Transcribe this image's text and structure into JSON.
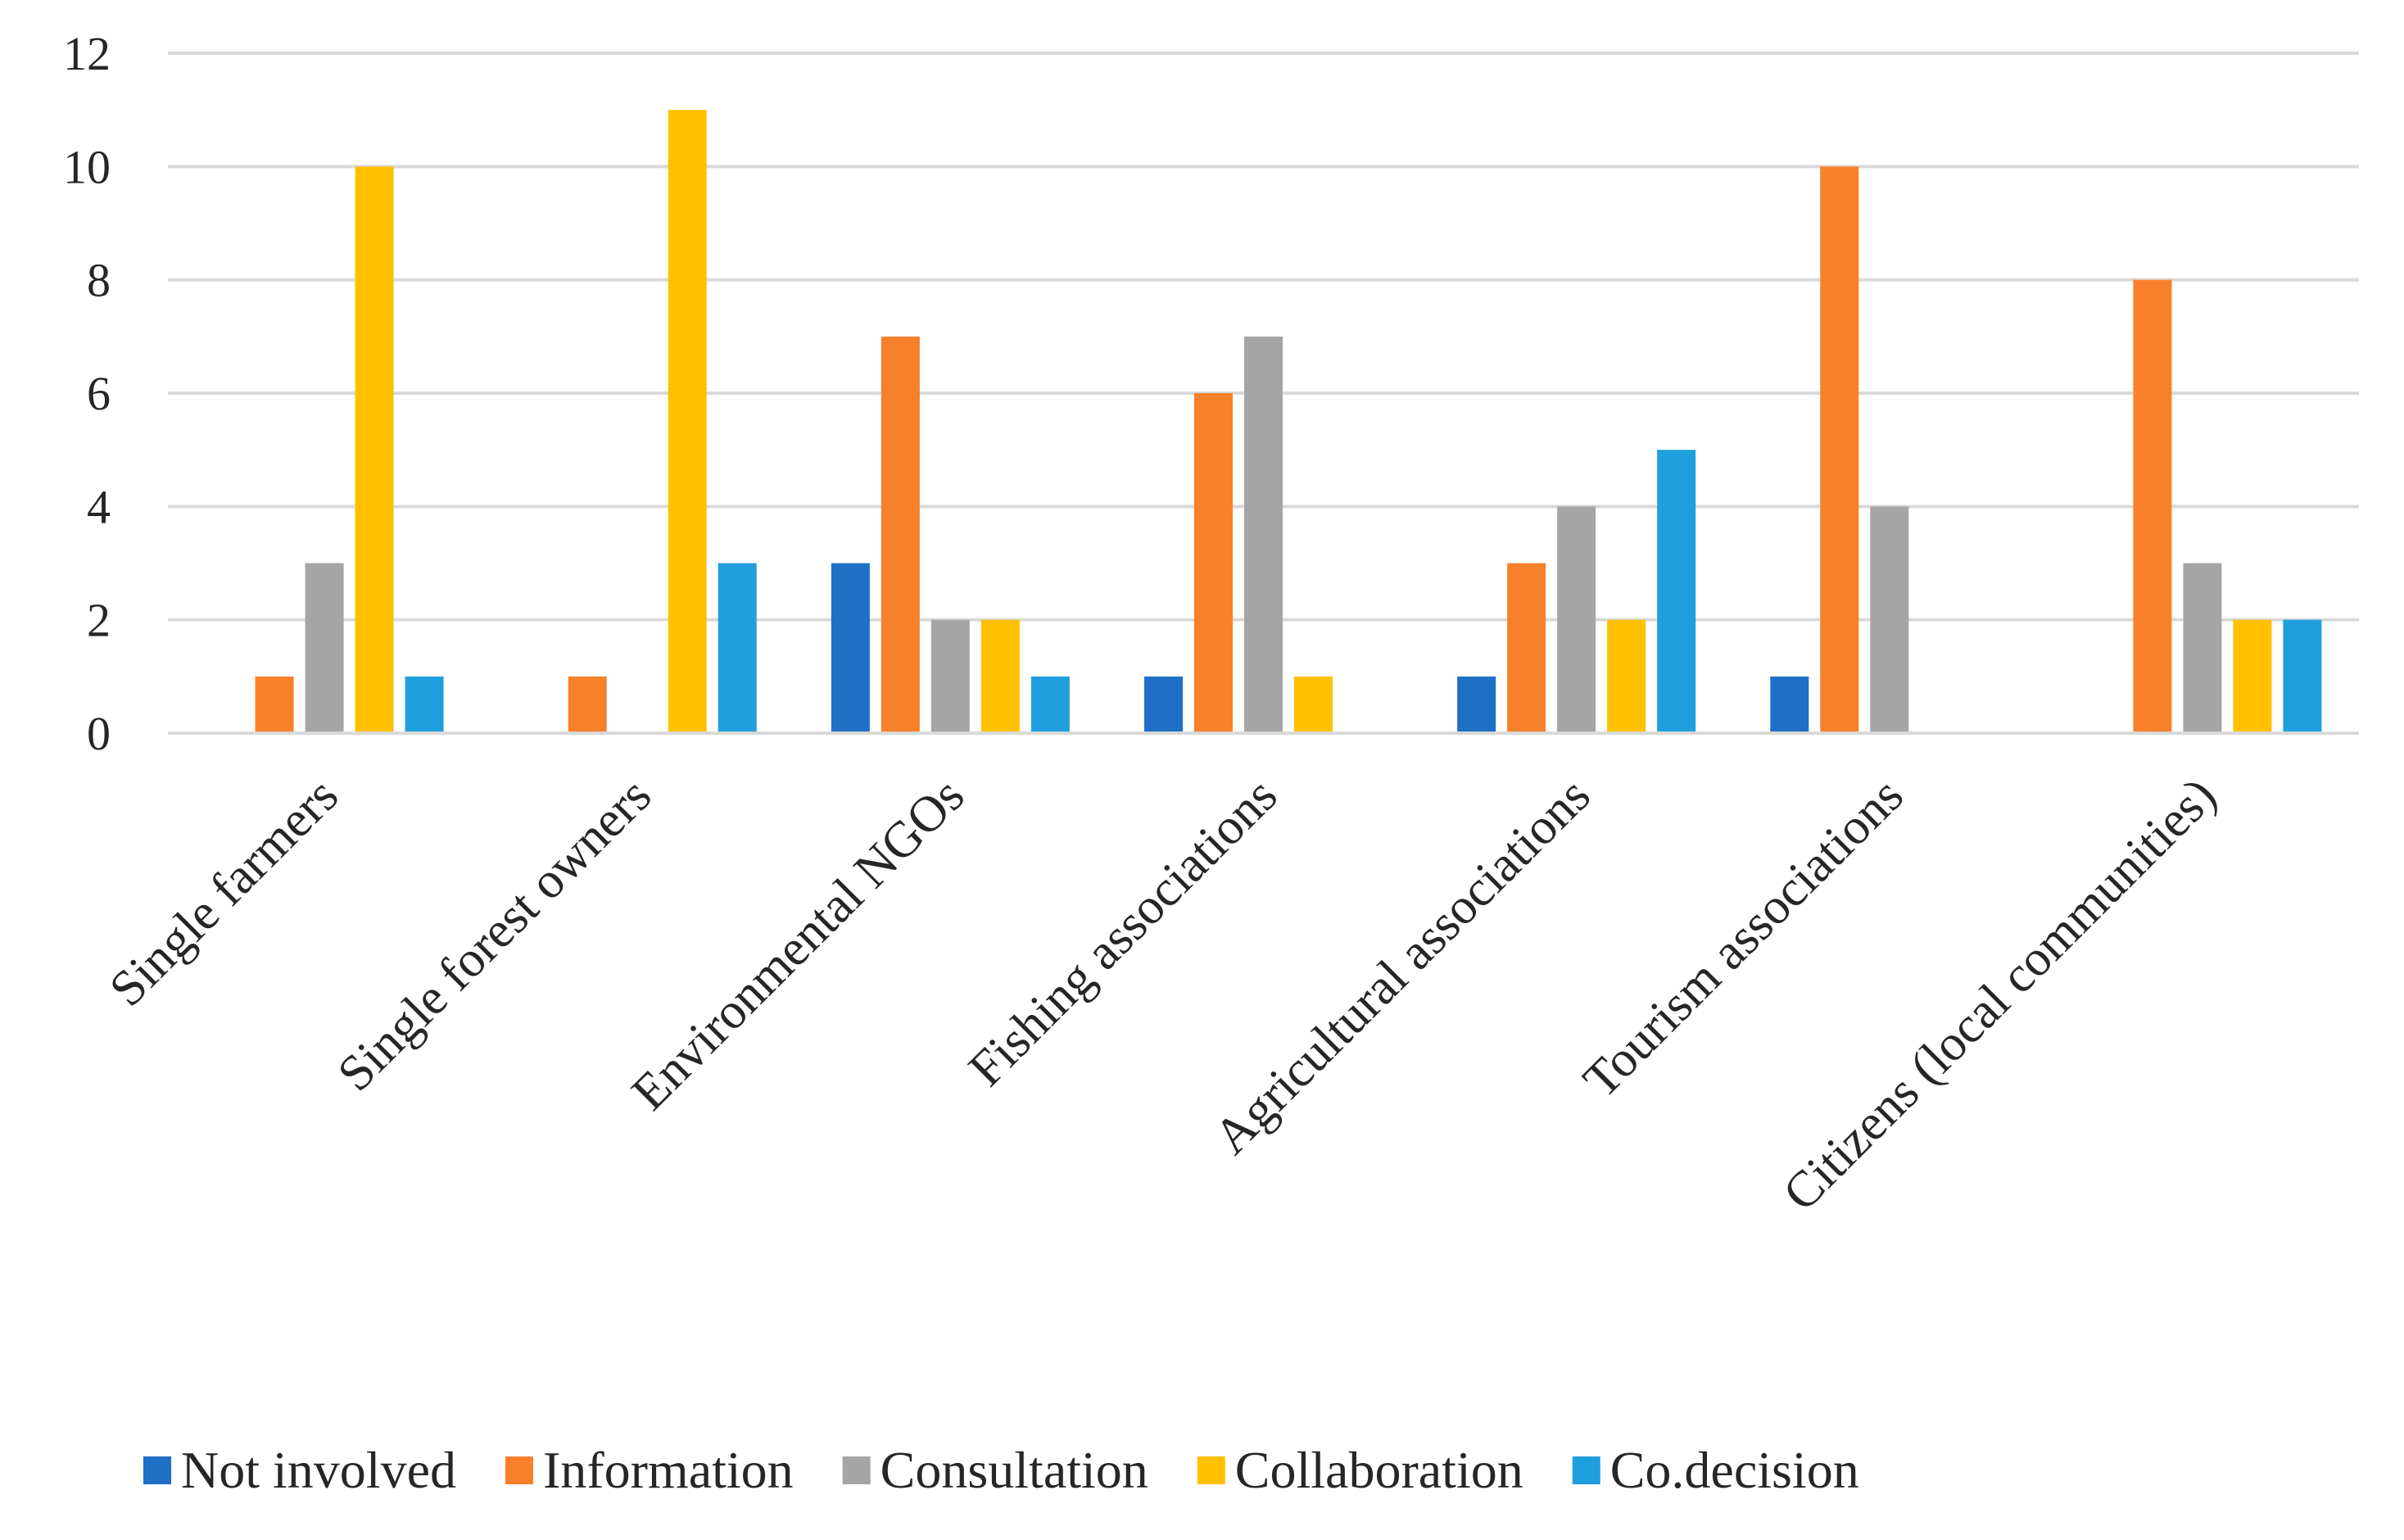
{
  "chart_data": {
    "type": "bar",
    "title": "",
    "xlabel": "",
    "ylabel": "",
    "ylim": [
      0,
      12
    ],
    "yticks": [
      0,
      2,
      4,
      6,
      8,
      10,
      12
    ],
    "grid": true,
    "legend_position": "bottom",
    "categories": [
      "Single farmers",
      "Single forest owners",
      "Environmental NGOs",
      "Fishing associations",
      "Agricultural associations",
      "Tourism associations",
      "Citizens (local communities)"
    ],
    "series": [
      {
        "name": "Not involved",
        "color": "#1f6fc6",
        "values": [
          0,
          0,
          3,
          1,
          1,
          1,
          0
        ]
      },
      {
        "name": "Information",
        "color": "#f7802b",
        "values": [
          1,
          1,
          7,
          6,
          3,
          10,
          8
        ]
      },
      {
        "name": "Consultation",
        "color": "#a5a5a5",
        "values": [
          3,
          0,
          2,
          7,
          4,
          4,
          3
        ]
      },
      {
        "name": "Collaboration",
        "color": "#ffc000",
        "values": [
          10,
          11,
          2,
          1,
          2,
          0,
          2
        ]
      },
      {
        "name": "Co.decision",
        "color": "#1f9fdd",
        "values": [
          1,
          3,
          1,
          0,
          5,
          0,
          2
        ]
      }
    ]
  }
}
